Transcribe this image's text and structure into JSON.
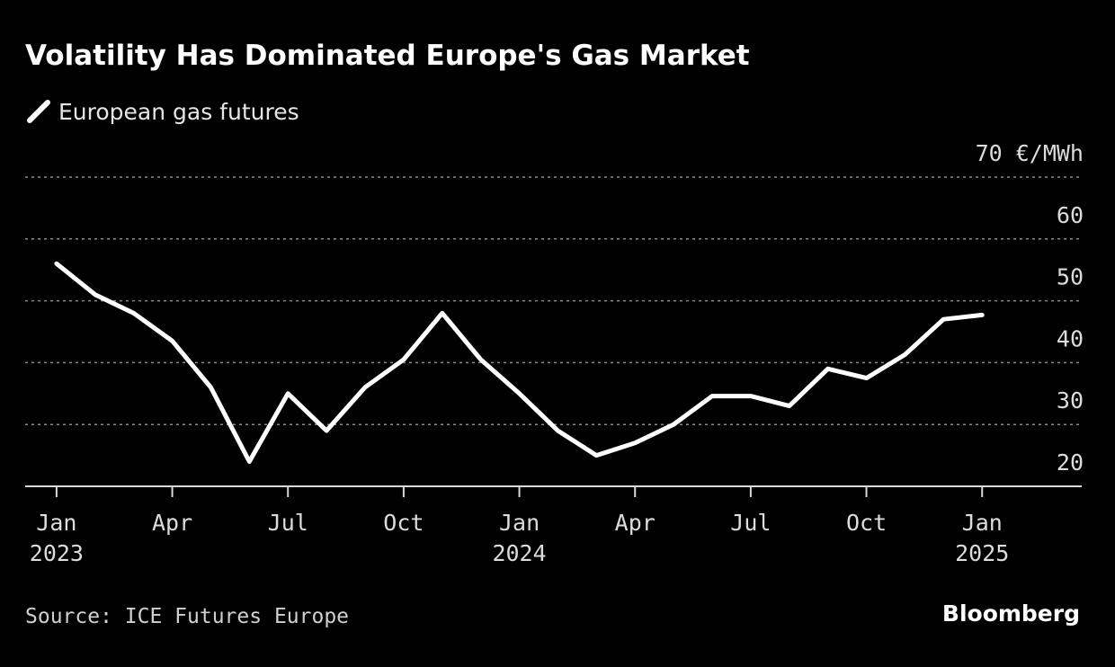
{
  "chart_data": {
    "type": "line",
    "title": "Volatility Has Dominated Europe's Gas Market",
    "source": "Source: ICE Futures Europe",
    "logo": "Bloomberg",
    "x": [
      "2023-01",
      "2023-02",
      "2023-03",
      "2023-04",
      "2023-05",
      "2023-06",
      "2023-07",
      "2023-08",
      "2023-09",
      "2023-10",
      "2023-11",
      "2023-12",
      "2024-01",
      "2024-02",
      "2024-03",
      "2024-04",
      "2024-05",
      "2024-06",
      "2024-07",
      "2024-08",
      "2024-09",
      "2024-10",
      "2024-11",
      "2024-12",
      "2025-01"
    ],
    "series": [
      {
        "name": "European gas futures",
        "color": "#ffffff",
        "values": [
          56,
          51,
          48,
          43.5,
          36,
          24,
          35,
          29,
          36,
          40.5,
          48,
          40.5,
          35,
          29,
          25,
          27,
          30,
          34.6,
          34.6,
          33,
          39,
          37.5,
          41.3,
          47,
          47.7
        ]
      }
    ],
    "xlim": [
      "2022-12",
      "2025-03"
    ],
    "xticks": [
      {
        "value": "2023-01",
        "label": "Jan"
      },
      {
        "value": "2023-04",
        "label": "Apr"
      },
      {
        "value": "2023-07",
        "label": "Jul"
      },
      {
        "value": "2023-10",
        "label": "Oct"
      },
      {
        "value": "2024-01",
        "label": "Jan"
      },
      {
        "value": "2024-04",
        "label": "Apr"
      },
      {
        "value": "2024-07",
        "label": "Jul"
      },
      {
        "value": "2024-10",
        "label": "Oct"
      },
      {
        "value": "2025-01",
        "label": "Jan"
      }
    ],
    "year_labels": [
      {
        "value": "2023-01",
        "label": "2023"
      },
      {
        "value": "2024-01",
        "label": "2024"
      },
      {
        "value": "2025-01",
        "label": "2025"
      }
    ],
    "ylim": [
      20,
      70
    ],
    "yticks": [
      20,
      30,
      40,
      50,
      60,
      {
        "value": 70,
        "label": "70 €/MWh"
      }
    ],
    "grid": true
  }
}
